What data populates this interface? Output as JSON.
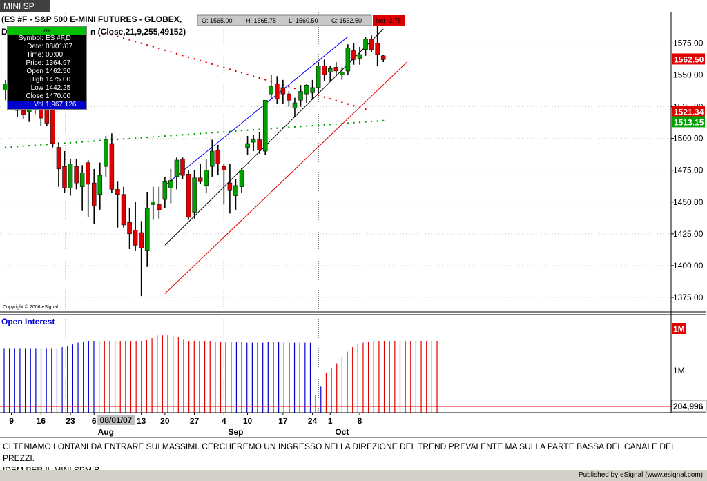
{
  "window": {
    "tab": "MINI SP"
  },
  "header": {
    "title_left": "(ES #F - S&P 500 E-MINI FUTURES - GLOBEX,",
    "title_line2_start": "D",
    "title_line2_end": "n (Close,21,9,255,49152)",
    "ohlc": [
      "O: 1565.00",
      "H: 1565.75",
      "L: 1560.50",
      "C: 1562.50"
    ],
    "net": "Net -2.75"
  },
  "infobox": {
    "status": "ok",
    "rows": [
      {
        "k": "Symbol:",
        "v": "ES #F,D"
      },
      {
        "k": "Date:",
        "v": "08/01/07"
      },
      {
        "k": "Time:",
        "v": "00:00"
      },
      {
        "k": "Price:",
        "v": "1364.97"
      },
      {
        "k": "Open",
        "v": "1462.50"
      },
      {
        "k": "High",
        "v": "1475.00"
      },
      {
        "k": "Low",
        "v": "1442.25"
      },
      {
        "k": "Close",
        "v": "1470.00"
      }
    ],
    "vol": {
      "k": "Vol",
      "v": "1,967,126"
    }
  },
  "copyright": "Copyright © 2006 eSignal.",
  "oi_title": "Open Interest",
  "comment": {
    "line1": "CI TENIAMO LONTANI DA ENTRARE SUI MASSIMI. CERCHEREMO UN INGRESSO NELLA DIREZIONE DEL TREND PREVALENTE MA SULLA PARTE BASSA DEL CANALE DEI PREZZI.",
    "line2": "IDEM PER IL MINI SPMIB"
  },
  "footer": "Published by eSignal (www.esignal.com)",
  "colors": {
    "up": "#00a000",
    "down": "#e00000",
    "oi_up": "#0000cc",
    "oi_down": "#e00000",
    "sar": "#e00000",
    "lower_sar": "#00a000"
  },
  "chart_data": [
    {
      "type": "candlestick",
      "yticks": [
        1375,
        1400,
        1425,
        1450,
        1475,
        1500,
        1525,
        1550,
        1575
      ],
      "ytick_labels": [
        "1375.00",
        "1400.00",
        "1425.00",
        "1450.00",
        "1475.00",
        "1500.00",
        "1525.00",
        "1550.00",
        "1575.00"
      ],
      "ylim": [
        1367,
        1600
      ],
      "tags": [
        {
          "label": "1562.50",
          "value": 1562.5,
          "color": "#e00000"
        },
        {
          "label": "1521.34",
          "value": 1521.34,
          "color": "#e00000"
        },
        {
          "label": "1513.15",
          "value": 1513.15,
          "color": "#00a000"
        }
      ],
      "candles": [
        {
          "o": 1538,
          "h": 1546,
          "l": 1530,
          "c": 1543
        },
        {
          "o": 1530,
          "h": 1538,
          "l": 1522,
          "c": 1527
        },
        {
          "o": 1527,
          "h": 1531,
          "l": 1517,
          "c": 1522
        },
        {
          "o": 1522,
          "h": 1528,
          "l": 1515,
          "c": 1519
        },
        {
          "o": 1521,
          "h": 1527,
          "l": 1513,
          "c": 1524
        },
        {
          "o": 1528,
          "h": 1535,
          "l": 1519,
          "c": 1532
        },
        {
          "o": 1530,
          "h": 1534,
          "l": 1510,
          "c": 1516
        },
        {
          "o": 1525,
          "h": 1530,
          "l": 1510,
          "c": 1512
        },
        {
          "o": 1527,
          "h": 1532,
          "l": 1493,
          "c": 1496
        },
        {
          "o": 1493,
          "h": 1497,
          "l": 1462,
          "c": 1476
        },
        {
          "o": 1478,
          "h": 1490,
          "l": 1457,
          "c": 1461
        },
        {
          "o": 1461,
          "h": 1484,
          "l": 1455,
          "c": 1480
        },
        {
          "o": 1478,
          "h": 1484,
          "l": 1460,
          "c": 1465
        },
        {
          "o": 1462,
          "h": 1479,
          "l": 1443,
          "c": 1473
        },
        {
          "o": 1481,
          "h": 1483,
          "l": 1438,
          "c": 1464
        },
        {
          "o": 1465,
          "h": 1476,
          "l": 1433,
          "c": 1447
        },
        {
          "o": 1456,
          "h": 1481,
          "l": 1444,
          "c": 1471
        },
        {
          "o": 1478,
          "h": 1502,
          "l": 1470,
          "c": 1499
        },
        {
          "o": 1496,
          "h": 1504,
          "l": 1457,
          "c": 1460
        },
        {
          "o": 1460,
          "h": 1466,
          "l": 1430,
          "c": 1456
        },
        {
          "o": 1456,
          "h": 1462,
          "l": 1430,
          "c": 1432
        },
        {
          "o": 1434,
          "h": 1445,
          "l": 1413,
          "c": 1425
        },
        {
          "o": 1428,
          "h": 1450,
          "l": 1412,
          "c": 1416
        },
        {
          "o": 1426,
          "h": 1435,
          "l": 1376,
          "c": 1414
        },
        {
          "o": 1412,
          "h": 1458,
          "l": 1399,
          "c": 1445
        },
        {
          "o": 1448,
          "h": 1462,
          "l": 1436,
          "c": 1450
        },
        {
          "o": 1448,
          "h": 1462,
          "l": 1437,
          "c": 1444
        },
        {
          "o": 1452,
          "h": 1470,
          "l": 1445,
          "c": 1466
        },
        {
          "o": 1461,
          "h": 1476,
          "l": 1449,
          "c": 1467
        },
        {
          "o": 1470,
          "h": 1485,
          "l": 1460,
          "c": 1483
        },
        {
          "o": 1484,
          "h": 1485,
          "l": 1468,
          "c": 1471
        },
        {
          "o": 1472,
          "h": 1475,
          "l": 1436,
          "c": 1438
        },
        {
          "o": 1442,
          "h": 1475,
          "l": 1437,
          "c": 1469
        },
        {
          "o": 1469,
          "h": 1480,
          "l": 1464,
          "c": 1466
        },
        {
          "o": 1463,
          "h": 1484,
          "l": 1457,
          "c": 1475
        },
        {
          "o": 1478,
          "h": 1499,
          "l": 1470,
          "c": 1490
        },
        {
          "o": 1491,
          "h": 1495,
          "l": 1471,
          "c": 1480
        },
        {
          "o": 1478,
          "h": 1480,
          "l": 1448,
          "c": 1475
        },
        {
          "o": 1465,
          "h": 1480,
          "l": 1441,
          "c": 1459
        },
        {
          "o": 1455,
          "h": 1468,
          "l": 1444,
          "c": 1463
        },
        {
          "o": 1462,
          "h": 1477,
          "l": 1457,
          "c": 1475
        },
        {
          "o": 1493,
          "h": 1502,
          "l": 1487,
          "c": 1496
        },
        {
          "o": 1497,
          "h": 1503,
          "l": 1490,
          "c": 1499
        },
        {
          "o": 1499,
          "h": 1505,
          "l": 1488,
          "c": 1491
        },
        {
          "o": 1490,
          "h": 1529,
          "l": 1487,
          "c": 1530
        },
        {
          "o": 1535,
          "h": 1550,
          "l": 1531,
          "c": 1541
        },
        {
          "o": 1543,
          "h": 1549,
          "l": 1527,
          "c": 1531
        },
        {
          "o": 1540,
          "h": 1546,
          "l": 1527,
          "c": 1535
        },
        {
          "o": 1535,
          "h": 1537,
          "l": 1525,
          "c": 1530
        },
        {
          "o": 1524,
          "h": 1532,
          "l": 1517,
          "c": 1528
        },
        {
          "o": 1530,
          "h": 1542,
          "l": 1525,
          "c": 1537
        },
        {
          "o": 1535,
          "h": 1543,
          "l": 1528,
          "c": 1542
        },
        {
          "o": 1536,
          "h": 1546,
          "l": 1531,
          "c": 1540
        },
        {
          "o": 1540,
          "h": 1560,
          "l": 1535,
          "c": 1557
        },
        {
          "o": 1557,
          "h": 1562,
          "l": 1545,
          "c": 1550
        },
        {
          "o": 1552,
          "h": 1557,
          "l": 1545,
          "c": 1555
        },
        {
          "o": 1556,
          "h": 1560,
          "l": 1549,
          "c": 1553
        },
        {
          "o": 1550,
          "h": 1556,
          "l": 1546,
          "c": 1552
        },
        {
          "o": 1553,
          "h": 1574,
          "l": 1550,
          "c": 1571
        },
        {
          "o": 1569,
          "h": 1575,
          "l": 1558,
          "c": 1562
        },
        {
          "o": 1563,
          "h": 1572,
          "l": 1558,
          "c": 1566
        },
        {
          "o": 1570,
          "h": 1580,
          "l": 1565,
          "c": 1578
        },
        {
          "o": 1578,
          "h": 1581,
          "l": 1568,
          "c": 1570
        },
        {
          "o": 1575,
          "h": 1590,
          "l": 1557,
          "c": 1566
        },
        {
          "o": 1565,
          "h": 1566,
          "l": 1560,
          "c": 1562
        }
      ],
      "upper_sar": {
        "x0": 17,
        "x1": 61,
        "v0": 1583,
        "v1": 1523
      },
      "lower_sar": {
        "x0": 0,
        "x1": 64,
        "v0": 1493,
        "v1": 1514
      },
      "channel": [
        {
          "color": "#0000ff",
          "x0": 27,
          "v0": 1463,
          "x1": 58,
          "v1": 1580
        },
        {
          "color": "#000000",
          "x0": 27,
          "v0": 1416,
          "x1": 64,
          "v1": 1586
        },
        {
          "color": "#e00000",
          "x0": 27,
          "v0": 1378,
          "x1": 68,
          "v1": 1560
        }
      ],
      "vlines": [
        {
          "at": 10.2,
          "color": "#e00000"
        },
        {
          "at": 37,
          "color": "#404040"
        },
        {
          "at": 53,
          "color": "#404040"
        }
      ]
    },
    {
      "type": "bar",
      "title": "Open Interest",
      "ytick_labels": [
        "1M",
        "1M"
      ],
      "last_label": "204,996",
      "values": [
        0.72,
        0.72,
        0.72,
        0.72,
        0.72,
        0.72,
        0.72,
        0.72,
        0.72,
        0.72,
        0.72,
        0.73,
        0.74,
        0.76,
        0.78,
        0.79,
        0.8,
        0.8,
        0.8,
        0.8,
        0.8,
        0.8,
        0.8,
        0.8,
        0.8,
        0.8,
        0.8,
        0.81,
        0.83,
        0.86,
        0.86,
        0.86,
        0.85,
        0.84,
        0.82,
        0.8,
        0.8,
        0.8,
        0.8,
        0.8,
        0.79,
        0.79,
        0.79,
        0.79,
        0.79,
        0.79,
        0.78,
        0.78,
        0.78,
        0.78,
        0.79,
        0.79,
        0.79,
        0.78,
        0.78,
        0.78,
        0.78,
        0.78,
        0.78,
        0.2,
        0.29,
        0.44,
        0.5,
        0.55,
        0.62,
        0.68,
        0.73,
        0.76,
        0.78,
        0.79,
        0.8,
        0.8,
        0.8,
        0.8,
        0.8,
        0.8,
        0.8,
        0.8,
        0.8,
        0.8,
        0.8,
        0.8,
        0.8
      ],
      "down_index_ranges": [
        [
          18,
          41
        ],
        [
          61,
          83
        ]
      ]
    }
  ],
  "xaxis": {
    "ticks": [
      {
        "i": 1,
        "label": "9"
      },
      {
        "i": 6,
        "label": "16"
      },
      {
        "i": 11,
        "label": "23"
      },
      {
        "i": 15,
        "label": "6"
      },
      {
        "i": 23,
        "label": "13"
      },
      {
        "i": 27,
        "label": "20"
      },
      {
        "i": 32,
        "label": "27"
      },
      {
        "i": 37,
        "label": "4"
      },
      {
        "i": 41,
        "label": "10"
      },
      {
        "i": 47,
        "label": "17"
      },
      {
        "i": 52,
        "label": "24"
      },
      {
        "i": 55,
        "label": "1"
      },
      {
        "i": 60,
        "label": "8"
      }
    ],
    "date_badge": "08/01/07",
    "months": [
      {
        "i": 17,
        "label": "Aug"
      },
      {
        "i": 39,
        "label": "Sep"
      },
      {
        "i": 57,
        "label": "Oct"
      }
    ]
  }
}
